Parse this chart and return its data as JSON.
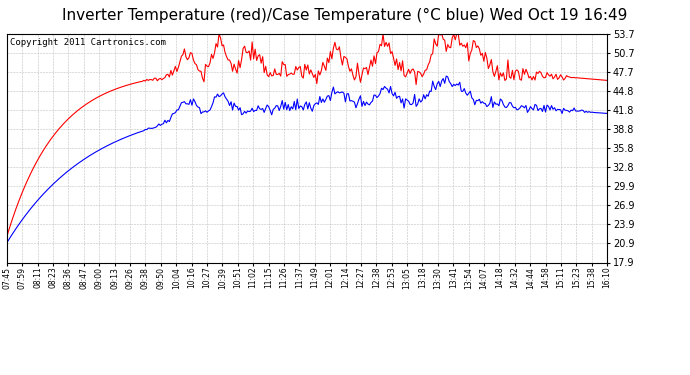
{
  "title": "Inverter Temperature (red)/Case Temperature (°C blue) Wed Oct 19 16:49",
  "copyright": "Copyright 2011 Cartronics.com",
  "yticks": [
    17.9,
    20.9,
    23.9,
    26.9,
    29.9,
    32.8,
    35.8,
    38.8,
    41.8,
    44.8,
    47.7,
    50.7,
    53.7
  ],
  "xtick_labels": [
    "07:45",
    "07:59",
    "08:11",
    "08:23",
    "08:36",
    "08:47",
    "09:00",
    "09:13",
    "09:26",
    "09:38",
    "09:50",
    "10:04",
    "10:16",
    "10:27",
    "10:39",
    "10:51",
    "11:02",
    "11:15",
    "11:26",
    "11:37",
    "11:49",
    "12:01",
    "12:14",
    "12:27",
    "12:38",
    "12:53",
    "13:05",
    "13:18",
    "13:30",
    "13:41",
    "13:54",
    "14:07",
    "14:18",
    "14:32",
    "14:44",
    "14:58",
    "15:11",
    "15:23",
    "15:38",
    "16:10"
  ],
  "ylim": [
    17.9,
    53.7
  ],
  "red_line_color": "#ff0000",
  "blue_line_color": "#0000ff",
  "bg_color": "#ffffff",
  "grid_color": "#b0b0b0",
  "title_fontsize": 11,
  "copyright_fontsize": 6.5,
  "n_points": 400
}
